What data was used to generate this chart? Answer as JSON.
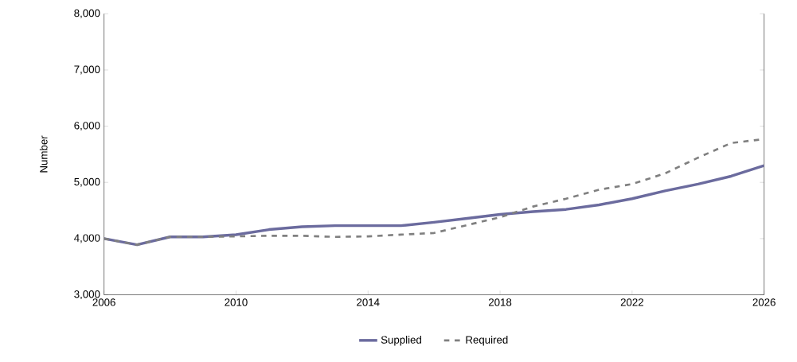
{
  "chart_data": {
    "type": "line",
    "ylabel": "Number",
    "x": [
      2006,
      2007,
      2008,
      2009,
      2010,
      2011,
      2012,
      2013,
      2014,
      2015,
      2016,
      2017,
      2018,
      2019,
      2020,
      2021,
      2022,
      2023,
      2024,
      2025,
      2026
    ],
    "series": [
      {
        "name": "Supplied",
        "color": "#6b6b9e",
        "line_style": "solid",
        "values": [
          4000,
          3890,
          4030,
          4030,
          4070,
          4160,
          4210,
          4230,
          4230,
          4230,
          4290,
          4360,
          4430,
          4480,
          4520,
          4600,
          4710,
          4850,
          4970,
          5110,
          5300
        ]
      },
      {
        "name": "Required",
        "color": "#808080",
        "line_style": "dashed",
        "values": [
          4000,
          3890,
          4030,
          4030,
          4040,
          4050,
          4050,
          4030,
          4040,
          4070,
          4100,
          4240,
          4380,
          4570,
          4710,
          4870,
          4970,
          5160,
          5440,
          5700,
          5770
        ]
      }
    ],
    "xlim": [
      2006,
      2026
    ],
    "xticks": [
      2006,
      2010,
      2014,
      2018,
      2022,
      2026
    ],
    "ylim": [
      3000,
      8000
    ],
    "yticks": [
      {
        "value": 3000,
        "label": "3,000"
      },
      {
        "value": 4000,
        "label": "4,000"
      },
      {
        "value": 5000,
        "label": "5,000"
      },
      {
        "value": 6000,
        "label": "6,000"
      },
      {
        "value": 7000,
        "label": "7,000"
      },
      {
        "value": 8000,
        "label": "8,000"
      }
    ],
    "grid": false,
    "legend": "bottom",
    "marker": "none"
  }
}
